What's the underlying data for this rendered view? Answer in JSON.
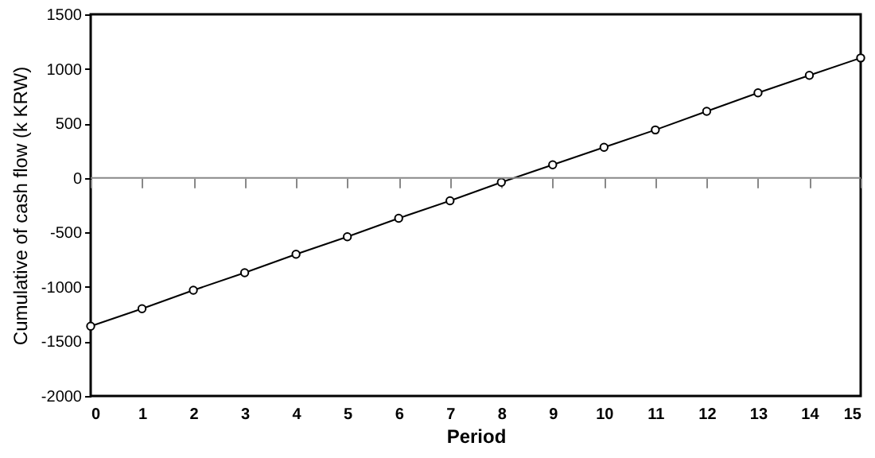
{
  "chart_data": {
    "type": "line",
    "xlabel": "Period",
    "ylabel": "Cumulative of cash flow (k KRW)",
    "x": [
      0,
      1,
      2,
      3,
      4,
      5,
      6,
      7,
      8,
      9,
      10,
      11,
      12,
      13,
      14,
      15
    ],
    "series": [
      {
        "color": "#000000",
        "values": [
          -1360,
          -1200,
          -1030,
          -870,
          -700,
          -540,
          -370,
          -210,
          -40,
          120,
          280,
          440,
          610,
          780,
          940,
          1100
        ]
      }
    ],
    "xlim": [
      0,
      15
    ],
    "xticks": [
      0,
      1,
      2,
      3,
      4,
      5,
      6,
      7,
      8,
      9,
      10,
      11,
      12,
      13,
      14,
      15
    ],
    "ylim": [
      -2000,
      1500
    ],
    "yticks": [
      -2000,
      -1500,
      -1000,
      -500,
      0,
      500,
      1000,
      1500
    ],
    "ref_lines": [
      {
        "axis": "y",
        "value": 0,
        "color": "#888888"
      }
    ],
    "grid": false,
    "marker": "circle",
    "line_style": "solid"
  }
}
